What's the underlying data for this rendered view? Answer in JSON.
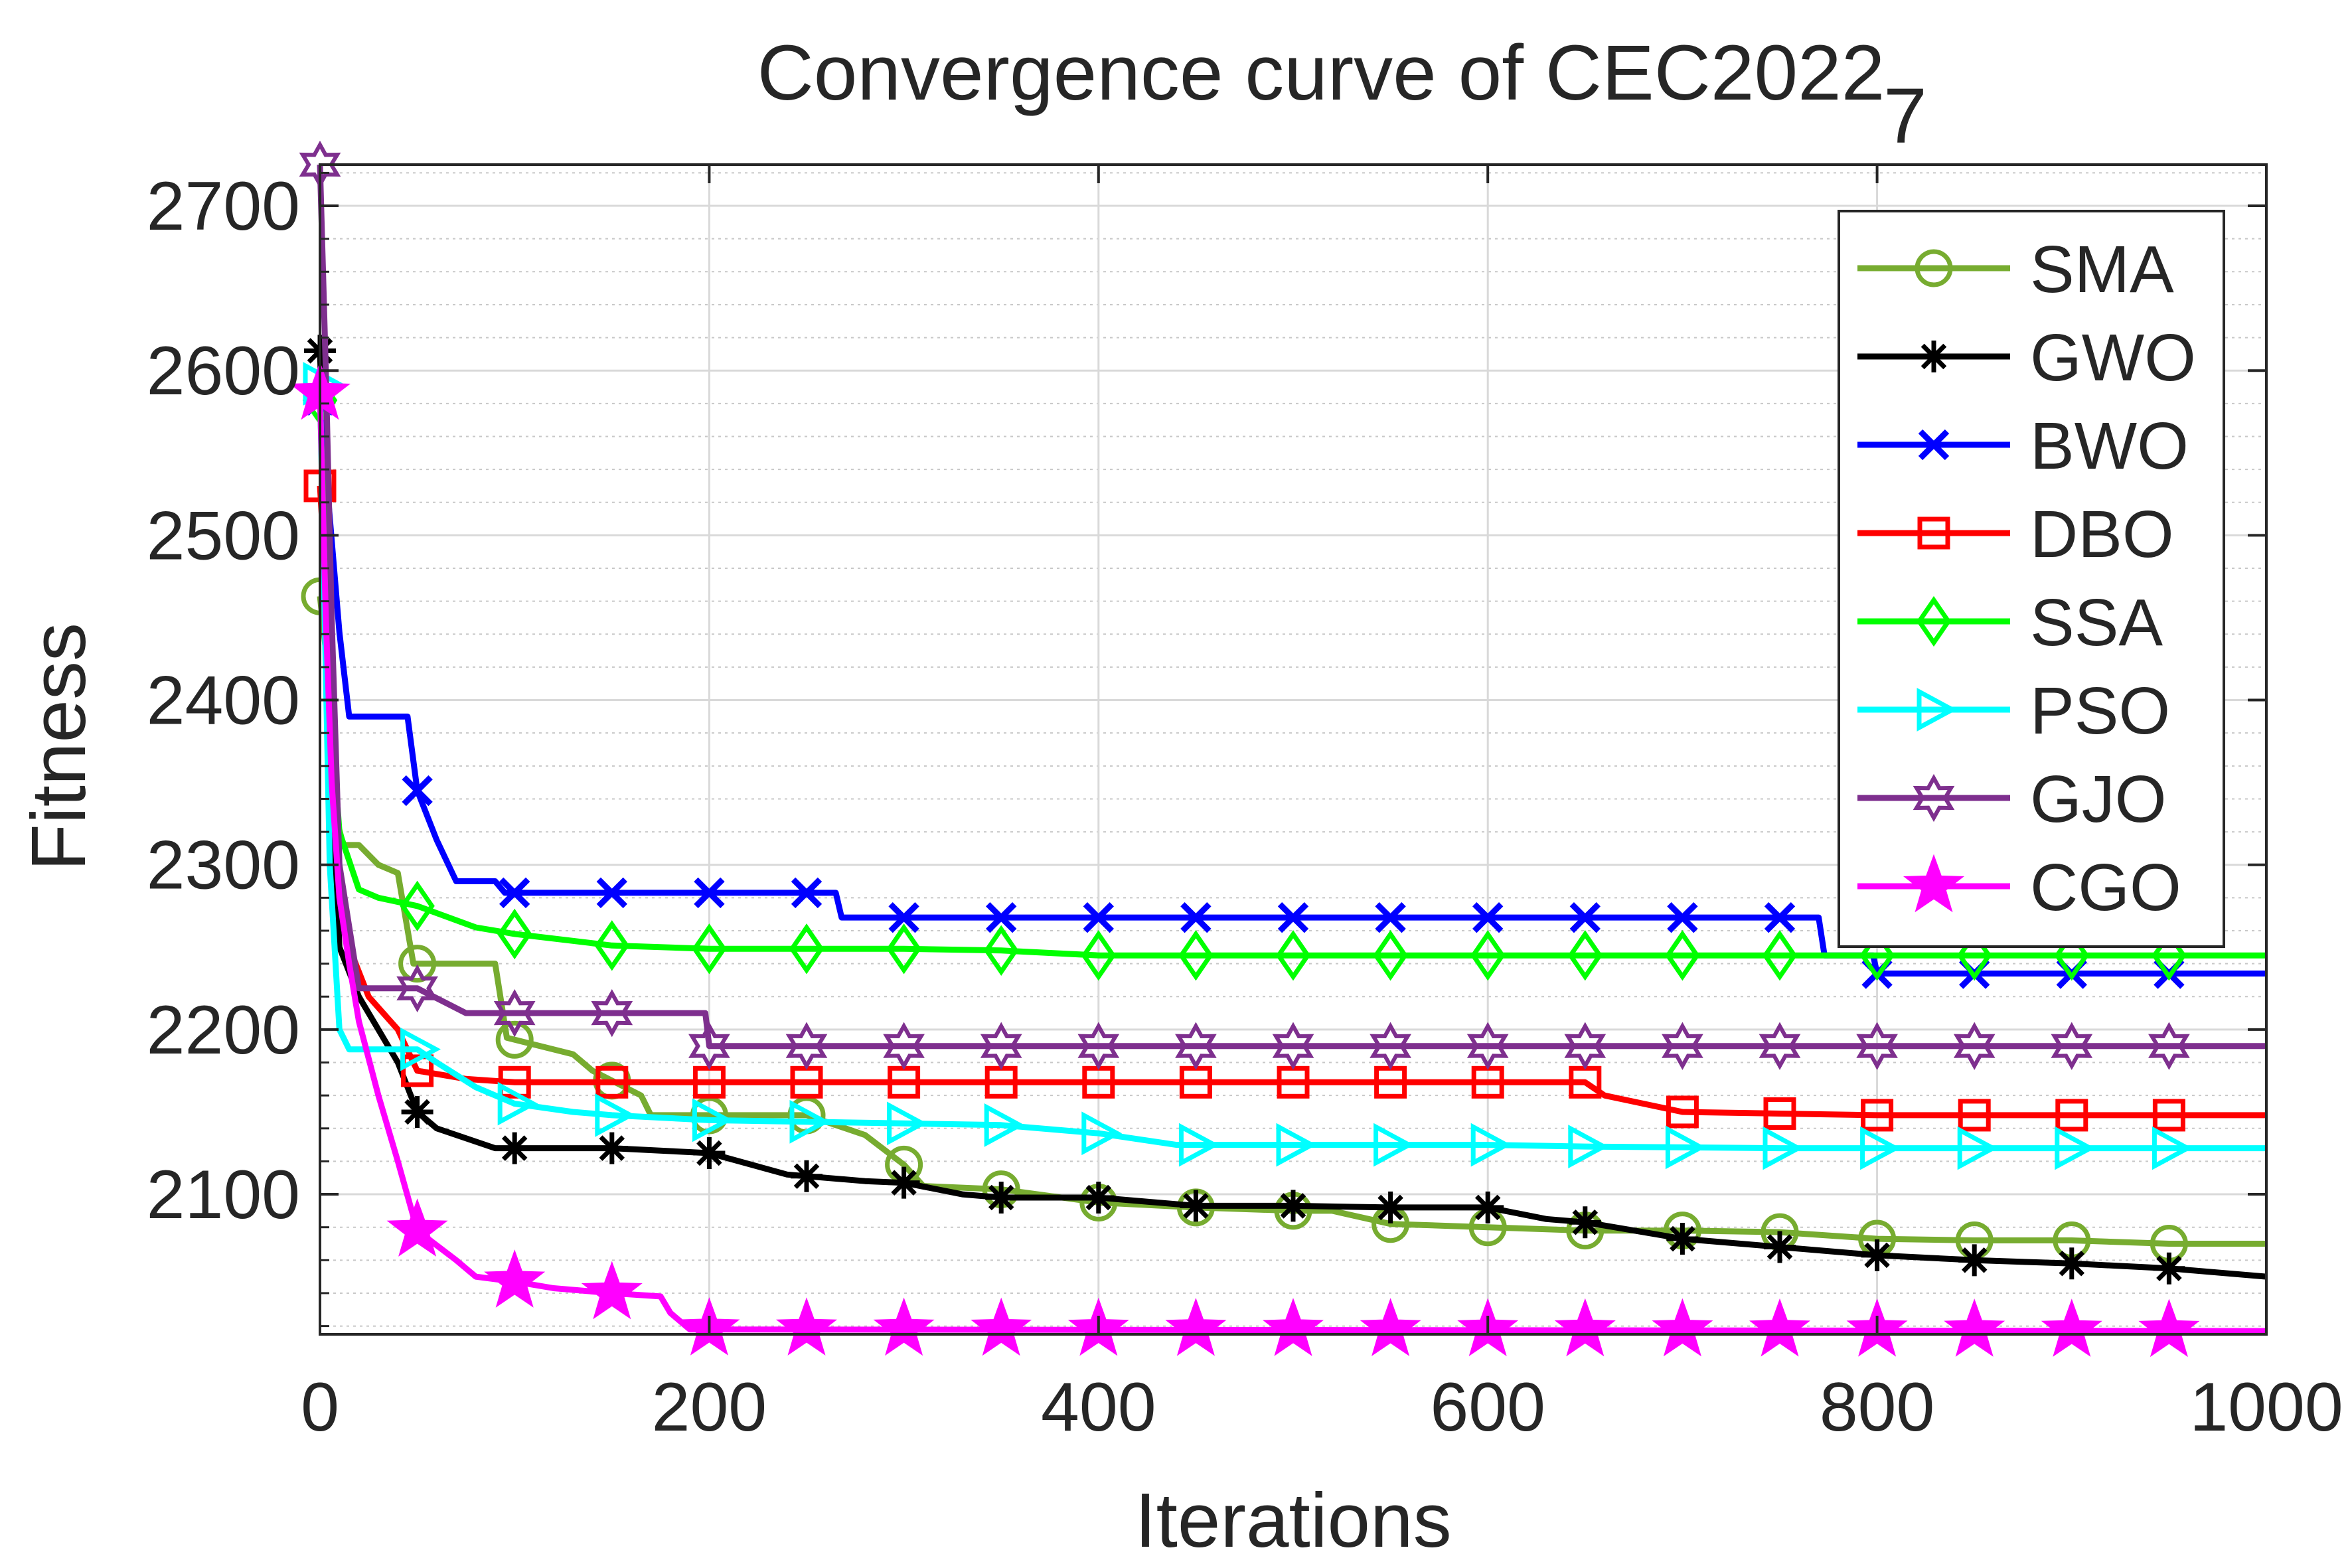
{
  "chart_data": {
    "type": "line",
    "title": "Convergence curve of CEC2022",
    "title_subscript": "7",
    "xlabel": "Iterations",
    "ylabel": "Fitness",
    "xlim": [
      0,
      1000
    ],
    "ylim": [
      2015,
      2725
    ],
    "xticks": [
      0,
      200,
      400,
      600,
      800,
      1000
    ],
    "xtick_labels": [
      "0",
      "200",
      "400",
      "600",
      "800",
      "1000"
    ],
    "yticks": [
      2100,
      2200,
      2300,
      2400,
      2500,
      2600,
      2700
    ],
    "ytick_labels": [
      "2100",
      "2200",
      "2300",
      "2400",
      "2500",
      "2600",
      "2700"
    ],
    "grid": true,
    "minor_grid": true,
    "legend_position": "top-right",
    "series": [
      {
        "name": "SMA",
        "color": "#77AC30",
        "marker": "circle",
        "points": [
          [
            0,
            2463
          ],
          [
            3,
            2430
          ],
          [
            5,
            2385
          ],
          [
            8,
            2330
          ],
          [
            12,
            2312
          ],
          [
            20,
            2312
          ],
          [
            30,
            2300
          ],
          [
            40,
            2295
          ],
          [
            48,
            2240
          ],
          [
            90,
            2240
          ],
          [
            96,
            2195
          ],
          [
            130,
            2185
          ],
          [
            140,
            2175
          ],
          [
            165,
            2160
          ],
          [
            170,
            2148
          ],
          [
            250,
            2148
          ],
          [
            280,
            2136
          ],
          [
            300,
            2118
          ],
          [
            310,
            2105
          ],
          [
            350,
            2103
          ],
          [
            400,
            2095
          ],
          [
            450,
            2092
          ],
          [
            500,
            2090
          ],
          [
            520,
            2090
          ],
          [
            550,
            2082
          ],
          [
            600,
            2080
          ],
          [
            650,
            2078
          ],
          [
            700,
            2078
          ],
          [
            750,
            2077
          ],
          [
            800,
            2073
          ],
          [
            850,
            2072
          ],
          [
            900,
            2072
          ],
          [
            950,
            2070
          ],
          [
            1000,
            2070
          ]
        ],
        "markers": [
          0,
          50,
          100,
          150,
          200,
          250,
          300,
          350,
          400,
          450,
          500,
          550,
          600,
          650,
          700,
          750,
          800,
          850,
          900,
          950
        ]
      },
      {
        "name": "GWO",
        "color": "#000000",
        "marker": "asterisk",
        "points": [
          [
            0,
            2612
          ],
          [
            3,
            2500
          ],
          [
            5,
            2400
          ],
          [
            8,
            2300
          ],
          [
            10,
            2250
          ],
          [
            20,
            2220
          ],
          [
            30,
            2200
          ],
          [
            40,
            2180
          ],
          [
            50,
            2150
          ],
          [
            60,
            2140
          ],
          [
            90,
            2128
          ],
          [
            150,
            2128
          ],
          [
            200,
            2125
          ],
          [
            240,
            2112
          ],
          [
            280,
            2108
          ],
          [
            300,
            2107
          ],
          [
            330,
            2100
          ],
          [
            350,
            2098
          ],
          [
            400,
            2098
          ],
          [
            450,
            2093
          ],
          [
            500,
            2093
          ],
          [
            550,
            2092
          ],
          [
            600,
            2092
          ],
          [
            630,
            2085
          ],
          [
            650,
            2083
          ],
          [
            700,
            2073
          ],
          [
            750,
            2068
          ],
          [
            800,
            2063
          ],
          [
            850,
            2060
          ],
          [
            900,
            2058
          ],
          [
            950,
            2055
          ],
          [
            1000,
            2050
          ]
        ],
        "markers": [
          0,
          50,
          100,
          150,
          200,
          250,
          300,
          350,
          400,
          450,
          500,
          550,
          600,
          650,
          700,
          750,
          800,
          850,
          900,
          950
        ]
      },
      {
        "name": "BWO",
        "color": "#0000FF",
        "marker": "x",
        "points": [
          [
            0,
            2582
          ],
          [
            10,
            2441
          ],
          [
            15,
            2390
          ],
          [
            45,
            2390
          ],
          [
            50,
            2345
          ],
          [
            60,
            2315
          ],
          [
            70,
            2290
          ],
          [
            90,
            2290
          ],
          [
            95,
            2283
          ],
          [
            265,
            2283
          ],
          [
            268,
            2268
          ],
          [
            770,
            2268
          ],
          [
            773,
            2245
          ],
          [
            798,
            2245
          ],
          [
            800,
            2234
          ],
          [
            1000,
            2234
          ]
        ],
        "markers": [
          0,
          50,
          100,
          150,
          200,
          250,
          300,
          350,
          400,
          450,
          500,
          550,
          600,
          650,
          700,
          750,
          800,
          850,
          900,
          950
        ]
      },
      {
        "name": "DBO",
        "color": "#FF0000",
        "marker": "square",
        "points": [
          [
            0,
            2530
          ],
          [
            4,
            2450
          ],
          [
            6,
            2380
          ],
          [
            10,
            2290
          ],
          [
            15,
            2250
          ],
          [
            25,
            2220
          ],
          [
            40,
            2200
          ],
          [
            50,
            2175
          ],
          [
            75,
            2170
          ],
          [
            100,
            2168
          ],
          [
            650,
            2168
          ],
          [
            660,
            2160
          ],
          [
            700,
            2150
          ],
          [
            800,
            2148
          ],
          [
            1000,
            2148
          ]
        ],
        "markers": [
          0,
          50,
          100,
          150,
          200,
          250,
          300,
          350,
          400,
          450,
          500,
          550,
          600,
          650,
          700,
          750,
          800,
          850,
          900,
          950
        ]
      },
      {
        "name": "SSA",
        "color": "#00FF00",
        "marker": "diamond",
        "points": [
          [
            0,
            2582
          ],
          [
            5,
            2400
          ],
          [
            10,
            2320
          ],
          [
            20,
            2285
          ],
          [
            30,
            2280
          ],
          [
            50,
            2275
          ],
          [
            80,
            2262
          ],
          [
            100,
            2258
          ],
          [
            150,
            2251
          ],
          [
            200,
            2249
          ],
          [
            300,
            2249
          ],
          [
            350,
            2248
          ],
          [
            400,
            2245
          ],
          [
            1000,
            2245
          ]
        ],
        "markers": [
          0,
          50,
          100,
          150,
          200,
          250,
          300,
          350,
          400,
          450,
          500,
          550,
          600,
          650,
          700,
          750,
          800,
          850,
          900,
          950
        ]
      },
      {
        "name": "PSO",
        "color": "#00FFFF",
        "marker": "triangle-right",
        "points": [
          [
            0,
            2592
          ],
          [
            5,
            2300
          ],
          [
            10,
            2200
          ],
          [
            15,
            2188
          ],
          [
            30,
            2188
          ],
          [
            50,
            2188
          ],
          [
            60,
            2180
          ],
          [
            80,
            2165
          ],
          [
            100,
            2155
          ],
          [
            130,
            2150
          ],
          [
            150,
            2148
          ],
          [
            200,
            2145
          ],
          [
            300,
            2143
          ],
          [
            350,
            2142
          ],
          [
            400,
            2137
          ],
          [
            440,
            2130
          ],
          [
            500,
            2130
          ],
          [
            600,
            2130
          ],
          [
            650,
            2129
          ],
          [
            750,
            2128
          ],
          [
            1000,
            2128
          ]
        ],
        "markers": [
          0,
          50,
          100,
          150,
          200,
          250,
          300,
          350,
          400,
          450,
          500,
          550,
          600,
          650,
          700,
          750,
          800,
          850,
          900,
          950
        ]
      },
      {
        "name": "GJO",
        "color": "#7E2F8E",
        "marker": "hexagram",
        "points": [
          [
            0,
            2725
          ],
          [
            3,
            2600
          ],
          [
            6,
            2450
          ],
          [
            10,
            2300
          ],
          [
            20,
            2225
          ],
          [
            50,
            2225
          ],
          [
            75,
            2210
          ],
          [
            150,
            2210
          ],
          [
            198,
            2210
          ],
          [
            200,
            2190
          ],
          [
            1000,
            2190
          ]
        ],
        "markers": [
          0,
          50,
          100,
          150,
          200,
          250,
          300,
          350,
          400,
          450,
          500,
          550,
          600,
          650,
          700,
          750,
          800,
          850,
          900,
          950
        ]
      },
      {
        "name": "CGO",
        "color": "#FF00FF",
        "marker": "pentagram",
        "points": [
          [
            0,
            2586
          ],
          [
            3,
            2450
          ],
          [
            6,
            2350
          ],
          [
            10,
            2280
          ],
          [
            15,
            2240
          ],
          [
            20,
            2205
          ],
          [
            30,
            2160
          ],
          [
            40,
            2120
          ],
          [
            50,
            2078
          ],
          [
            70,
            2060
          ],
          [
            80,
            2050
          ],
          [
            100,
            2047
          ],
          [
            120,
            2043
          ],
          [
            150,
            2040
          ],
          [
            175,
            2038
          ],
          [
            180,
            2028
          ],
          [
            190,
            2018
          ],
          [
            1000,
            2017
          ]
        ],
        "markers": [
          0,
          50,
          100,
          150,
          200,
          250,
          300,
          350,
          400,
          450,
          500,
          550,
          600,
          650,
          700,
          750,
          800,
          850,
          900,
          950
        ]
      }
    ]
  }
}
